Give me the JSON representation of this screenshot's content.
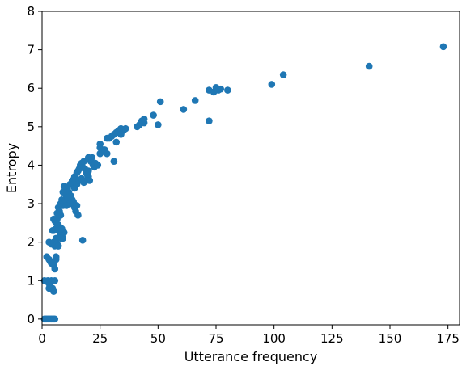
{
  "chart_data": {
    "type": "scatter",
    "title": "",
    "xlabel": "Utterance frequency",
    "ylabel": "Entropy",
    "xlim": [
      0,
      180
    ],
    "ylim": [
      -0.15,
      8
    ],
    "xticks": [
      0,
      25,
      50,
      75,
      100,
      125,
      150,
      175
    ],
    "yticks": [
      0,
      1,
      2,
      3,
      4,
      5,
      6,
      7,
      8
    ],
    "grid": false,
    "marker_color": "#1f77b4",
    "series": [
      {
        "points": [
          [
            1,
            0
          ],
          [
            1.5,
            0
          ],
          [
            2,
            0
          ],
          [
            2.5,
            0
          ],
          [
            3,
            0
          ],
          [
            3.5,
            0
          ],
          [
            4,
            0
          ],
          [
            4.5,
            0
          ],
          [
            5,
            0
          ],
          [
            5.5,
            0
          ],
          [
            1,
            1
          ],
          [
            2,
            0.98
          ],
          [
            2.5,
            1
          ],
          [
            3,
            0.92
          ],
          [
            3.5,
            0.85
          ],
          [
            4,
            1
          ],
          [
            4.5,
            0.8
          ],
          [
            5,
            0.72
          ],
          [
            5.5,
            1
          ],
          [
            3,
            0.8
          ],
          [
            2,
            1.62
          ],
          [
            3,
            1.55
          ],
          [
            3.5,
            1.5
          ],
          [
            4,
            1.45
          ],
          [
            5,
            1.4
          ],
          [
            5.5,
            1.3
          ],
          [
            6,
            1.55
          ],
          [
            6,
            1.62
          ],
          [
            3,
            2
          ],
          [
            4,
            1.95
          ],
          [
            4.5,
            2.3
          ],
          [
            5,
            2
          ],
          [
            5.5,
            1.9
          ],
          [
            6,
            2.05
          ],
          [
            6.5,
            1.95
          ],
          [
            7,
            1.9
          ],
          [
            6,
            2.1
          ],
          [
            5,
            2.3
          ],
          [
            5,
            2.6
          ],
          [
            5.5,
            2.55
          ],
          [
            6,
            2.5
          ],
          [
            6.5,
            2.6
          ],
          [
            7,
            2.45
          ],
          [
            6.5,
            2.75
          ],
          [
            7,
            2.9
          ],
          [
            7.5,
            2.8
          ],
          [
            8,
            2.7
          ],
          [
            6,
            2.35
          ],
          [
            8,
            3
          ],
          [
            8.5,
            3.1
          ],
          [
            9,
            2.95
          ],
          [
            9.5,
            3
          ],
          [
            10,
            3.1
          ],
          [
            7,
            2.3
          ],
          [
            8,
            2.2
          ],
          [
            9,
            2.1
          ],
          [
            9.5,
            2.25
          ],
          [
            8.5,
            2.35
          ],
          [
            10,
            3.3
          ],
          [
            10.5,
            3.2
          ],
          [
            11,
            3.4
          ],
          [
            11.5,
            3.3
          ],
          [
            12,
            3.5
          ],
          [
            12.5,
            3.2
          ],
          [
            13,
            3.1
          ],
          [
            13.5,
            3.05
          ],
          [
            14,
            2.9
          ],
          [
            14.5,
            2.8
          ],
          [
            15,
            2.95
          ],
          [
            15.5,
            2.7
          ],
          [
            11,
            3.15
          ],
          [
            12,
            3.0
          ],
          [
            10.5,
            2.95
          ],
          [
            9,
            3.3
          ],
          [
            9.5,
            3.45
          ],
          [
            13,
            3.6
          ],
          [
            13.5,
            3.5
          ],
          [
            14,
            3.7
          ],
          [
            14.5,
            3.6
          ],
          [
            15,
            3.8
          ],
          [
            15.5,
            3.85
          ],
          [
            16,
            3.9
          ],
          [
            16.5,
            4.0
          ],
          [
            17,
            4.05
          ],
          [
            17.5,
            3.95
          ],
          [
            18,
            4.1
          ],
          [
            18.5,
            3.9
          ],
          [
            19,
            3.8
          ],
          [
            19.5,
            3.75
          ],
          [
            20,
            3.7
          ],
          [
            14,
            3.4
          ],
          [
            15,
            3.5
          ],
          [
            16,
            3.6
          ],
          [
            17,
            3.65
          ],
          [
            18,
            3.55
          ],
          [
            19,
            3.6
          ],
          [
            20,
            3.85
          ],
          [
            20.5,
            3.6
          ],
          [
            21,
            4.1
          ],
          [
            21.5,
            4.2
          ],
          [
            22,
            4.0
          ],
          [
            22.5,
            3.95
          ],
          [
            23,
            4.05
          ],
          [
            24,
            4.0
          ],
          [
            20,
            4.2
          ],
          [
            25,
            4.3
          ],
          [
            25,
            4.45
          ],
          [
            25,
            4.55
          ],
          [
            26,
            4.35
          ],
          [
            27,
            4.4
          ],
          [
            28,
            4.3
          ],
          [
            28,
            4.7
          ],
          [
            29,
            4.7
          ],
          [
            30,
            4.75
          ],
          [
            31,
            4.8
          ],
          [
            32,
            4.85
          ],
          [
            33,
            4.9
          ],
          [
            34,
            4.95
          ],
          [
            35,
            4.9
          ],
          [
            36,
            4.95
          ],
          [
            31,
            4.1
          ],
          [
            32,
            4.6
          ],
          [
            34,
            4.8
          ],
          [
            41,
            5.0
          ],
          [
            42,
            5.05
          ],
          [
            43,
            5.15
          ],
          [
            44,
            5.2
          ],
          [
            44,
            5.1
          ],
          [
            48,
            5.3
          ],
          [
            50,
            5.05
          ],
          [
            51,
            5.65
          ],
          [
            61,
            5.45
          ],
          [
            66,
            5.68
          ],
          [
            72,
            5.15
          ],
          [
            72,
            5.95
          ],
          [
            74,
            5.9
          ],
          [
            75,
            6.02
          ],
          [
            76,
            5.95
          ],
          [
            77,
            5.98
          ],
          [
            80,
            5.95
          ],
          [
            99,
            6.1
          ],
          [
            104,
            6.35
          ],
          [
            141,
            6.57
          ],
          [
            173,
            7.08
          ],
          [
            17.5,
            2.05
          ],
          [
            7,
            1.9
          ],
          [
            8,
            2.1
          ],
          [
            6,
            1.6
          ]
        ]
      }
    ]
  }
}
